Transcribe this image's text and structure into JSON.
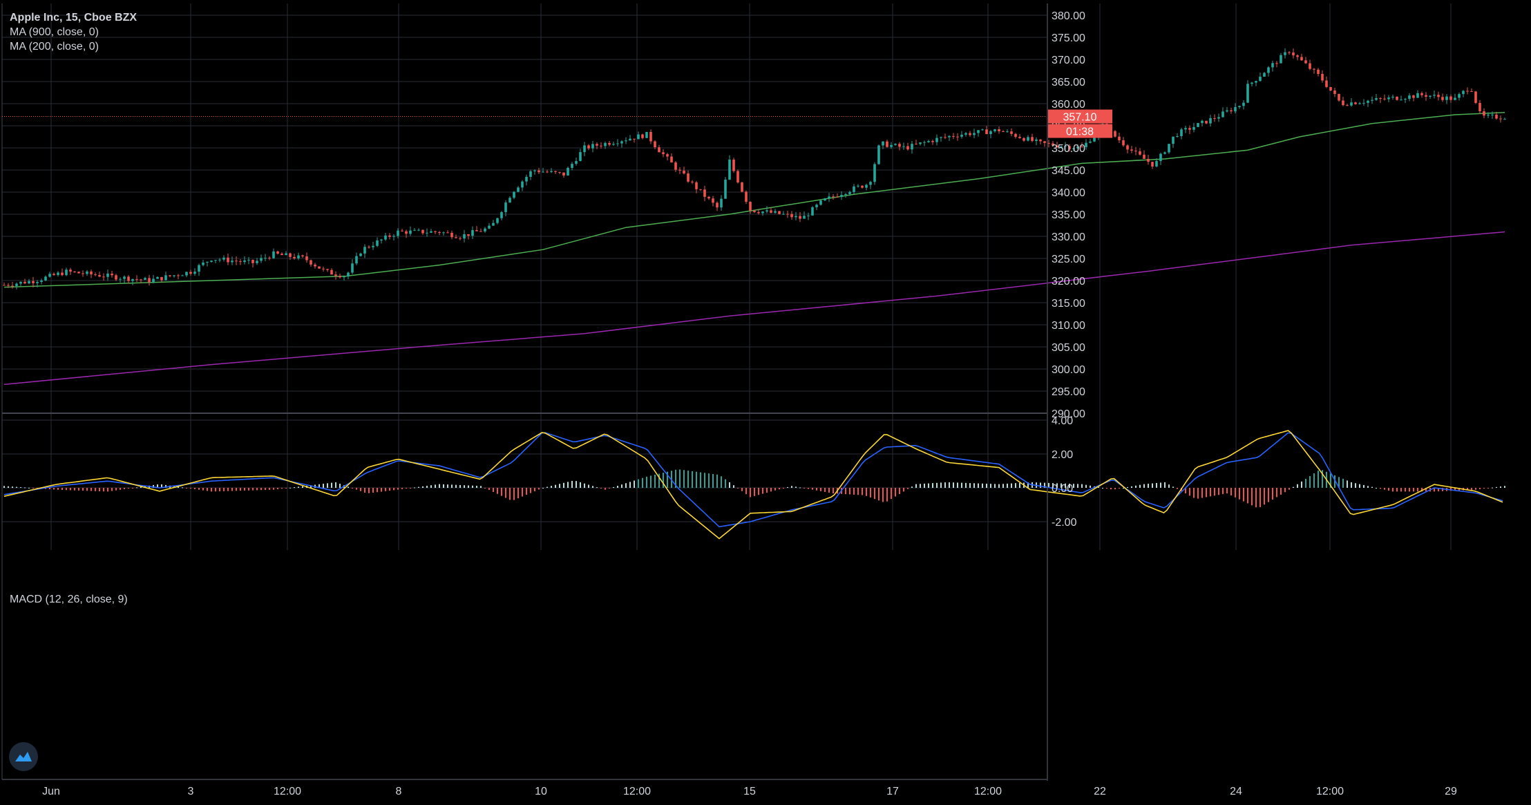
{
  "header": {
    "title": "Apple Inc, 15, Cboe BZX",
    "ma1_label": "MA (900, close, 0)",
    "ma2_label": "MA (200, close, 0)"
  },
  "macd_panel": {
    "label": "MACD (12, 26, close, 9)"
  },
  "colors": {
    "background": "#000000",
    "grid": "#2a2e39",
    "up": "#26a69a",
    "down": "#ef5350",
    "ma900": "#9c27b0",
    "ma200": "#4caf50",
    "macd_line": "#2962ff",
    "signal_line": "#fdd835",
    "price_tag": "#ef5350"
  },
  "price_tag": {
    "price": "357.10",
    "countdown": "01:38"
  },
  "chart_data": [
    {
      "type": "candlestick",
      "title": "Apple Inc, 15, Cboe BZX",
      "y_ticks": [
        "380.00",
        "375.00",
        "370.00",
        "365.00",
        "360.00",
        "355.00",
        "350.00",
        "345.00",
        "340.00",
        "335.00",
        "330.00",
        "325.00",
        "320.00",
        "315.00",
        "310.00",
        "305.00",
        "300.00",
        "295.00",
        "290.00"
      ],
      "ylim": [
        290,
        380
      ],
      "x_ticks": [
        "Jun",
        "3",
        "12:00",
        "8",
        "10",
        "12:00",
        "15",
        "17",
        "12:00",
        "22",
        "24",
        "12:00",
        "29"
      ],
      "grid": true,
      "last_price": 357.1,
      "price_path_keypoints": [
        [
          0,
          319
        ],
        [
          30,
          320
        ],
        [
          60,
          322
        ],
        [
          100,
          321
        ],
        [
          140,
          320
        ],
        [
          180,
          322
        ],
        [
          200,
          325
        ],
        [
          240,
          324
        ],
        [
          260,
          326
        ],
        [
          290,
          325
        ],
        [
          310,
          322
        ],
        [
          330,
          321
        ],
        [
          345,
          327
        ],
        [
          380,
          331
        ],
        [
          420,
          331
        ],
        [
          440,
          330
        ],
        [
          470,
          332
        ],
        [
          490,
          340
        ],
        [
          510,
          345
        ],
        [
          540,
          344
        ],
        [
          560,
          350
        ],
        [
          600,
          352
        ],
        [
          620,
          353
        ],
        [
          630,
          350
        ],
        [
          650,
          345
        ],
        [
          690,
          336
        ],
        [
          700,
          347
        ],
        [
          720,
          336
        ],
        [
          750,
          335
        ],
        [
          770,
          334
        ],
        [
          790,
          338
        ],
        [
          810,
          340
        ],
        [
          835,
          342
        ],
        [
          845,
          351
        ],
        [
          870,
          350
        ],
        [
          900,
          352
        ],
        [
          920,
          353
        ],
        [
          960,
          354
        ],
        [
          1000,
          351
        ],
        [
          1040,
          350
        ],
        [
          1060,
          355
        ],
        [
          1090,
          349
        ],
        [
          1110,
          346
        ],
        [
          1130,
          353
        ],
        [
          1170,
          357
        ],
        [
          1195,
          360
        ],
        [
          1200,
          364
        ],
        [
          1240,
          372
        ],
        [
          1270,
          366
        ],
        [
          1290,
          360
        ],
        [
          1330,
          361
        ],
        [
          1370,
          362
        ],
        [
          1400,
          361
        ],
        [
          1415,
          364
        ],
        [
          1425,
          357
        ],
        [
          1448,
          357
        ]
      ],
      "series": [
        {
          "name": "MA (900, close, 0)",
          "points": [
            [
              0,
              296.5
            ],
            [
              200,
              301
            ],
            [
              400,
              305
            ],
            [
              560,
              308
            ],
            [
              700,
              312
            ],
            [
              900,
              316.5
            ],
            [
              1100,
              322
            ],
            [
              1300,
              328
            ],
            [
              1448,
              331
            ]
          ]
        },
        {
          "name": "MA (200, close, 0)",
          "points": [
            [
              0,
              318.5
            ],
            [
              200,
              320
            ],
            [
              330,
              321
            ],
            [
              420,
              323.5
            ],
            [
              520,
              327
            ],
            [
              600,
              332
            ],
            [
              700,
              335
            ],
            [
              820,
              339.5
            ],
            [
              940,
              343
            ],
            [
              1040,
              346.5
            ],
            [
              1120,
              347.5
            ],
            [
              1200,
              349.5
            ],
            [
              1250,
              352.5
            ],
            [
              1320,
              355.5
            ],
            [
              1400,
              357.5
            ],
            [
              1448,
              358
            ]
          ]
        }
      ]
    },
    {
      "type": "macd",
      "title": "MACD (12, 26, close, 9)",
      "y_ticks": [
        "4.00",
        "2.00",
        "0.00",
        "-2.00"
      ],
      "ylim": [
        -4,
        4.4
      ],
      "series": [
        {
          "name": "MACD",
          "points": [
            [
              0,
              -0.4
            ],
            [
              50,
              0.1
            ],
            [
              100,
              0.4
            ],
            [
              150,
              0
            ],
            [
              200,
              0.4
            ],
            [
              260,
              0.6
            ],
            [
              320,
              -0.2
            ],
            [
              350,
              0.9
            ],
            [
              380,
              1.6
            ],
            [
              420,
              1.3
            ],
            [
              460,
              0.6
            ],
            [
              490,
              1.5
            ],
            [
              520,
              3.3
            ],
            [
              550,
              2.7
            ],
            [
              580,
              3.1
            ],
            [
              620,
              2.3
            ],
            [
              650,
              0
            ],
            [
              690,
              -2.3
            ],
            [
              720,
              -2
            ],
            [
              760,
              -1.3
            ],
            [
              800,
              -0.8
            ],
            [
              830,
              1.6
            ],
            [
              850,
              2.4
            ],
            [
              880,
              2.5
            ],
            [
              910,
              1.8
            ],
            [
              960,
              1.4
            ],
            [
              990,
              0.2
            ],
            [
              1040,
              -0.3
            ],
            [
              1070,
              0.5
            ],
            [
              1100,
              -0.8
            ],
            [
              1120,
              -1.2
            ],
            [
              1150,
              0.6
            ],
            [
              1180,
              1.5
            ],
            [
              1210,
              1.8
            ],
            [
              1240,
              3.3
            ],
            [
              1270,
              2
            ],
            [
              1300,
              -1.3
            ],
            [
              1340,
              -1.2
            ],
            [
              1380,
              0
            ],
            [
              1420,
              -0.3
            ],
            [
              1448,
              -0.8
            ]
          ]
        },
        {
          "name": "Signal",
          "points": [
            [
              0,
              -0.5
            ],
            [
              50,
              0.2
            ],
            [
              100,
              0.6
            ],
            [
              150,
              -0.2
            ],
            [
              200,
              0.6
            ],
            [
              260,
              0.7
            ],
            [
              320,
              -0.5
            ],
            [
              350,
              1.2
            ],
            [
              380,
              1.7
            ],
            [
              420,
              1.1
            ],
            [
              460,
              0.5
            ],
            [
              490,
              2.2
            ],
            [
              520,
              3.3
            ],
            [
              550,
              2.3
            ],
            [
              580,
              3.2
            ],
            [
              620,
              1.7
            ],
            [
              650,
              -1
            ],
            [
              690,
              -3
            ],
            [
              720,
              -1.5
            ],
            [
              760,
              -1.4
            ],
            [
              800,
              -0.5
            ],
            [
              830,
              2
            ],
            [
              850,
              3.2
            ],
            [
              880,
              2.3
            ],
            [
              910,
              1.5
            ],
            [
              960,
              1.2
            ],
            [
              990,
              -0.1
            ],
            [
              1040,
              -0.5
            ],
            [
              1070,
              0.6
            ],
            [
              1100,
              -1
            ],
            [
              1120,
              -1.5
            ],
            [
              1150,
              1.2
            ],
            [
              1180,
              1.8
            ],
            [
              1210,
              2.9
            ],
            [
              1240,
              3.4
            ],
            [
              1270,
              1
            ],
            [
              1300,
              -1.6
            ],
            [
              1340,
              -1
            ],
            [
              1380,
              0.2
            ],
            [
              1420,
              -0.2
            ],
            [
              1448,
              -0.9
            ]
          ]
        }
      ]
    }
  ]
}
